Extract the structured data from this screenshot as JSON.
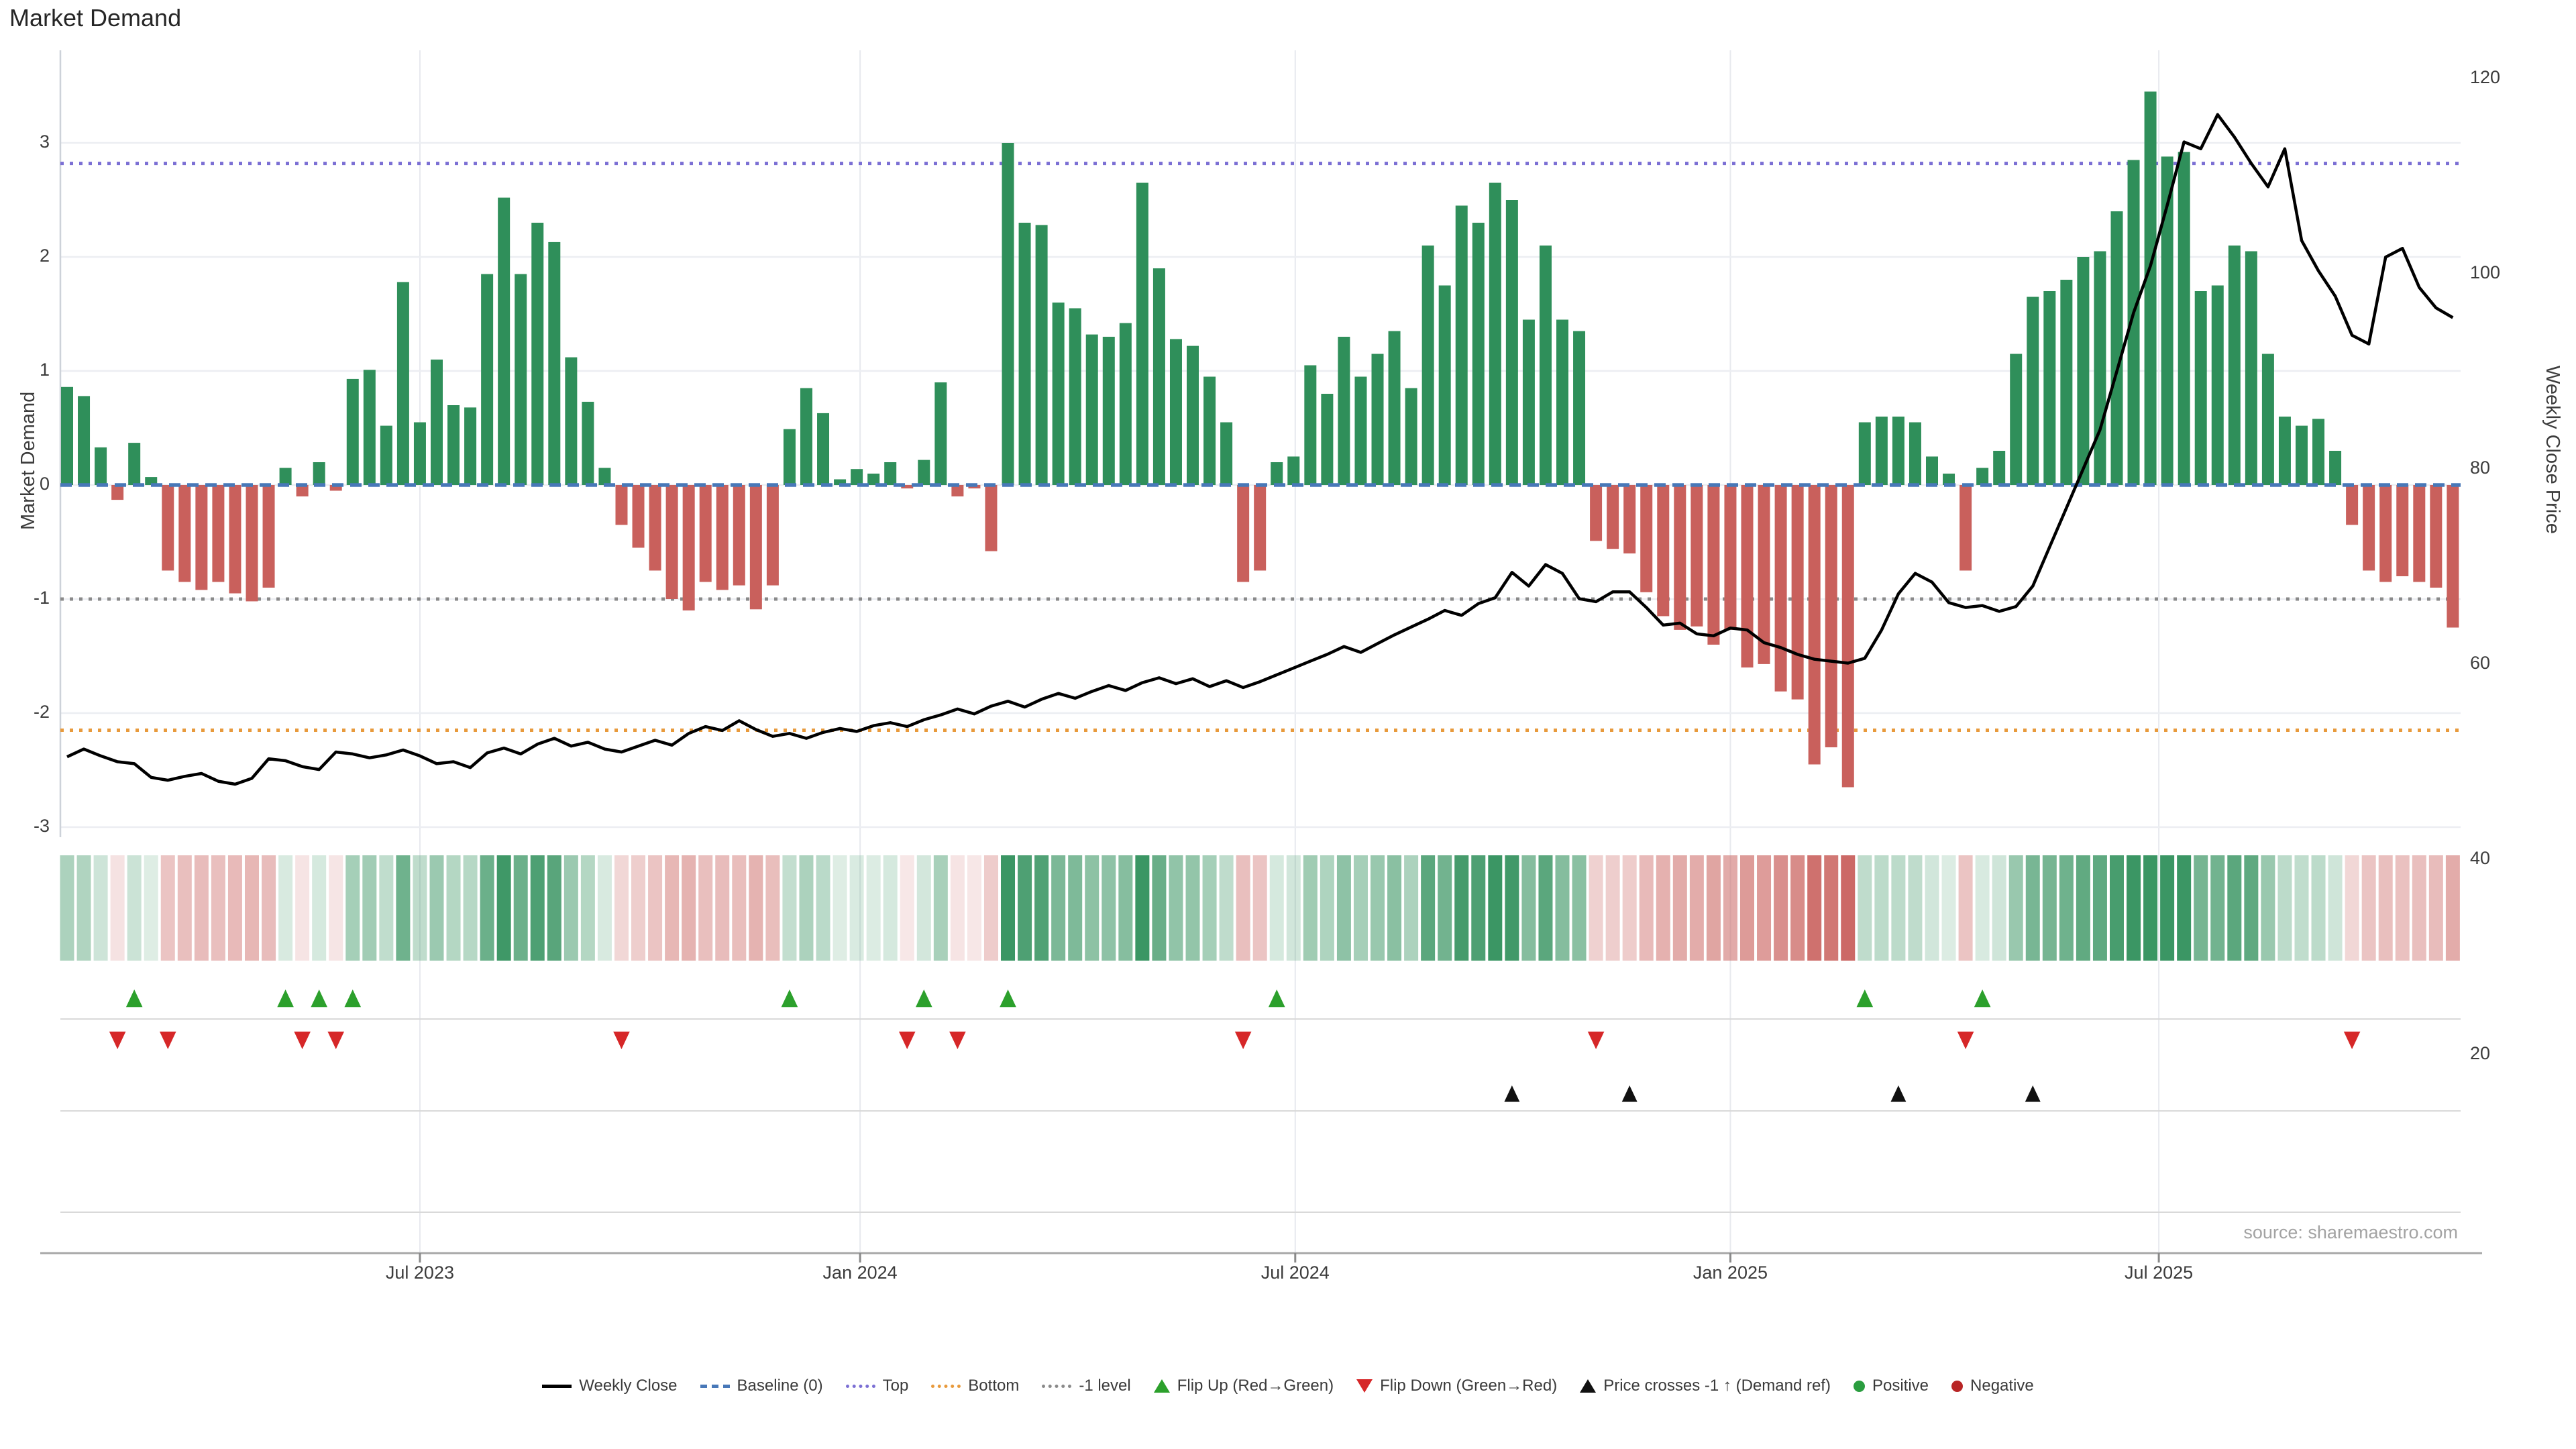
{
  "title": "Market Demand",
  "source": "source: sharemaestro.com",
  "axes": {
    "left_label": "Market Demand",
    "right_label": "Weekly Close Price",
    "left_ticks": [
      "3",
      "2",
      "1",
      "0",
      "-1",
      "-2",
      "-3"
    ],
    "left_tick_values": [
      3,
      2,
      1,
      0,
      -1,
      -2,
      -3
    ],
    "right_ticks": [
      "120",
      "100",
      "80",
      "60",
      "40",
      "20"
    ],
    "right_tick_values": [
      120,
      100,
      80,
      60,
      40,
      20
    ],
    "x_ticks": [
      "Jul 2023",
      "Jan 2024",
      "Jul 2024",
      "Jan 2025",
      "Jul 2025"
    ],
    "x_tick_week_pos": [
      21.0,
      47.2,
      73.1,
      99.0,
      124.5
    ]
  },
  "colors": {
    "bar_positive": "#2f8f5a",
    "bar_negative": "#c9605c",
    "price_line": "#000000",
    "baseline": "#4878b8",
    "top_line": "#7b6fd4",
    "bottom_line": "#e89a3c",
    "minus1_line": "#8a8a8a",
    "flip_up": "#2ca02c",
    "flip_down": "#d62728",
    "price_cross": "#111111",
    "positive_dot": "#2a9d3f",
    "negative_dot": "#b82525",
    "grid": "#eceef2",
    "divider": "#d9d9d9",
    "axis_line": "#a8a8a8"
  },
  "legend": {
    "items": [
      {
        "label": "Weekly Close",
        "glyph": "line",
        "color": "#000000"
      },
      {
        "label": "Baseline (0)",
        "glyph": "dash",
        "color": "#4878b8"
      },
      {
        "label": "Top",
        "glyph": "dot",
        "color": "#7b6fd4"
      },
      {
        "label": "Bottom",
        "glyph": "dot",
        "color": "#e89a3c"
      },
      {
        "label": "-1 level",
        "glyph": "dot",
        "color": "#8a8a8a"
      },
      {
        "label": "Flip Up (Red→Green)",
        "glyph": "tri-up",
        "color": "#2ca02c"
      },
      {
        "label": "Flip Down (Green→Red)",
        "glyph": "tri-down",
        "color": "#d62728"
      },
      {
        "label": "Price crosses -1 ↑ (Demand ref)",
        "glyph": "tri-up",
        "color": "#111111"
      },
      {
        "label": "Positive",
        "glyph": "circle",
        "color": "#2a9d3f"
      },
      {
        "label": "Negative",
        "glyph": "circle",
        "color": "#b82525"
      }
    ]
  },
  "chart_data": {
    "type": "combo (bar + line + heatmap strip + event markers)",
    "freq": "weekly",
    "start_date": "2023-02-06",
    "n_weeks": 143,
    "ylabel_left": "Market Demand",
    "ylabel_right": "Weekly Close Price",
    "demand_ylim": [
      -3.1,
      3.8
    ],
    "price_axis_ticks": [
      20,
      40,
      60,
      80,
      100,
      120
    ],
    "baseline": 0,
    "top_level": 2.82,
    "bottom_level": -2.15,
    "minus1_level": -1,
    "grid": true,
    "legend_position": "bottom center",
    "demand": [
      0.86,
      0.78,
      0.33,
      -0.13,
      0.37,
      0.07,
      -0.75,
      -0.85,
      -0.92,
      -0.85,
      -0.95,
      -1.02,
      -0.9,
      0.15,
      -0.1,
      0.2,
      -0.05,
      0.93,
      1.01,
      0.52,
      1.78,
      0.55,
      1.1,
      0.7,
      0.68,
      1.85,
      2.52,
      1.85,
      2.3,
      2.13,
      1.12,
      0.73,
      0.15,
      -0.35,
      -0.55,
      -0.75,
      -1.0,
      -1.1,
      -0.85,
      -0.92,
      -0.88,
      -1.09,
      -0.88,
      0.49,
      0.85,
      0.63,
      0.05,
      0.14,
      0.1,
      0.2,
      -0.03,
      0.22,
      0.9,
      -0.1,
      -0.03,
      -0.58,
      3.0,
      2.3,
      2.28,
      1.6,
      1.55,
      1.32,
      1.3,
      1.42,
      2.65,
      1.9,
      1.28,
      1.22,
      0.95,
      0.55,
      -0.85,
      -0.75,
      0.2,
      0.25,
      1.05,
      0.8,
      1.3,
      0.95,
      1.15,
      1.35,
      0.85,
      2.1,
      1.75,
      2.45,
      2.3,
      2.65,
      2.5,
      1.45,
      2.1,
      1.45,
      1.35,
      -0.49,
      -0.56,
      -0.6,
      -0.94,
      -1.15,
      -1.27,
      -1.24,
      -1.4,
      -1.27,
      -1.6,
      -1.57,
      -1.81,
      -1.88,
      -2.45,
      -2.3,
      -2.65,
      0.55,
      0.6,
      0.6,
      0.55,
      0.25,
      0.1,
      -0.75,
      0.15,
      0.3,
      1.15,
      1.65,
      1.7,
      1.8,
      2.0,
      2.05,
      2.4,
      2.85,
      3.45,
      2.88,
      2.92,
      1.7,
      1.75,
      2.1,
      2.05,
      1.15,
      0.6,
      0.52,
      0.58,
      0.3,
      -0.35,
      -0.75,
      -0.85,
      -0.8,
      -0.85,
      -0.9,
      -1.25
    ],
    "price": [
      50.5,
      51.3,
      50.6,
      50.0,
      49.8,
      48.4,
      48.1,
      48.5,
      48.8,
      48.0,
      47.7,
      48.3,
      50.3,
      50.1,
      49.5,
      49.2,
      51.0,
      50.8,
      50.4,
      50.7,
      51.2,
      50.6,
      49.8,
      50.0,
      49.4,
      50.9,
      51.4,
      50.8,
      51.8,
      52.4,
      51.6,
      52.0,
      51.3,
      51.0,
      51.6,
      52.2,
      51.7,
      52.9,
      53.6,
      53.2,
      54.2,
      53.3,
      52.6,
      52.9,
      52.4,
      53.0,
      53.4,
      53.1,
      53.7,
      54.0,
      53.6,
      54.3,
      54.8,
      55.4,
      54.9,
      55.7,
      56.2,
      55.6,
      56.4,
      57.0,
      56.5,
      57.2,
      57.8,
      57.3,
      58.1,
      58.6,
      58.0,
      58.5,
      57.7,
      58.3,
      57.6,
      58.2,
      58.9,
      59.6,
      60.3,
      61.0,
      61.8,
      61.2,
      62.1,
      63.0,
      63.8,
      64.6,
      65.5,
      65.0,
      66.2,
      66.8,
      69.4,
      68.0,
      70.2,
      69.3,
      66.7,
      66.4,
      67.4,
      67.4,
      65.8,
      64.0,
      64.2,
      63.1,
      62.9,
      63.7,
      63.5,
      62.2,
      61.7,
      61.0,
      60.5,
      60.3,
      60.1,
      60.6,
      63.5,
      67.2,
      69.3,
      68.4,
      66.3,
      65.8,
      66.0,
      65.4,
      65.9,
      68.0,
      72.0,
      76.0,
      80.0,
      84.0,
      90.0,
      96.0,
      100.8,
      107.0,
      113.5,
      112.8,
      116.3,
      114.0,
      111.3,
      108.9,
      112.8,
      103.4,
      100.3,
      97.7,
      93.7,
      92.8,
      101.7,
      102.6,
      98.6,
      96.5,
      95.5
    ],
    "flip_up_week_idx": [
      4,
      13,
      15,
      17,
      43,
      51,
      56,
      72,
      107,
      114
    ],
    "flip_down_week_idx": [
      3,
      6,
      14,
      16,
      33,
      50,
      53,
      70,
      91,
      113,
      136
    ],
    "price_cross_week_idx": [
      86,
      93,
      109,
      117
    ],
    "heatmap": "same weekly demand values; green shades = positive, red shades = negative, intensity proportional to magnitude"
  }
}
